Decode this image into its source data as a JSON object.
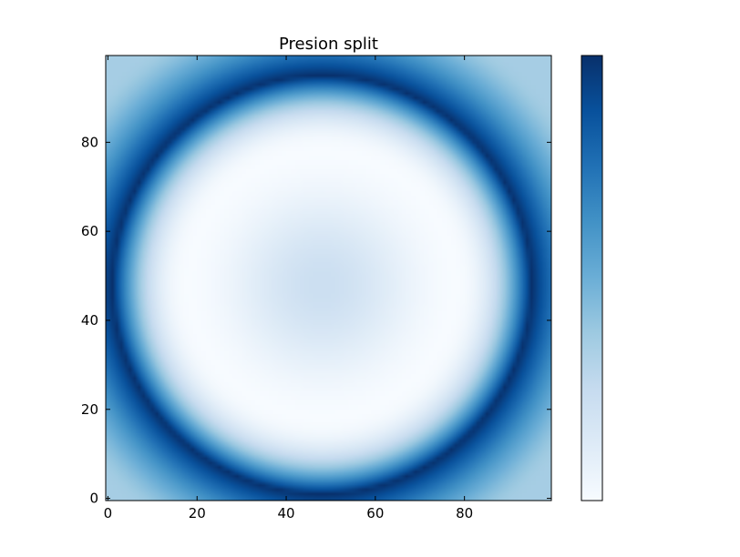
{
  "chart_data": {
    "type": "heatmap",
    "title": "Presion split",
    "xlabel": "",
    "ylabel": "",
    "xlim": [
      0,
      99
    ],
    "ylim": [
      0,
      99
    ],
    "x_ticks": [
      0,
      20,
      40,
      60,
      80
    ],
    "y_ticks": [
      0,
      20,
      40,
      60,
      80
    ],
    "x_tick_labels": [
      "0",
      "20",
      "40",
      "60",
      "80"
    ],
    "y_tick_labels": [
      "0",
      "20",
      "40",
      "60",
      "80"
    ],
    "grid": false,
    "colormap": "Blues",
    "colorbar": true,
    "colorbar_tick_labels": [],
    "field": {
      "center": [
        48,
        48
      ],
      "ring_radius": 47,
      "ring_peak": 1.0,
      "center_value": 0.22,
      "trough_radius": 30,
      "trough_value": 0.0,
      "corner_value": 0.35
    }
  }
}
